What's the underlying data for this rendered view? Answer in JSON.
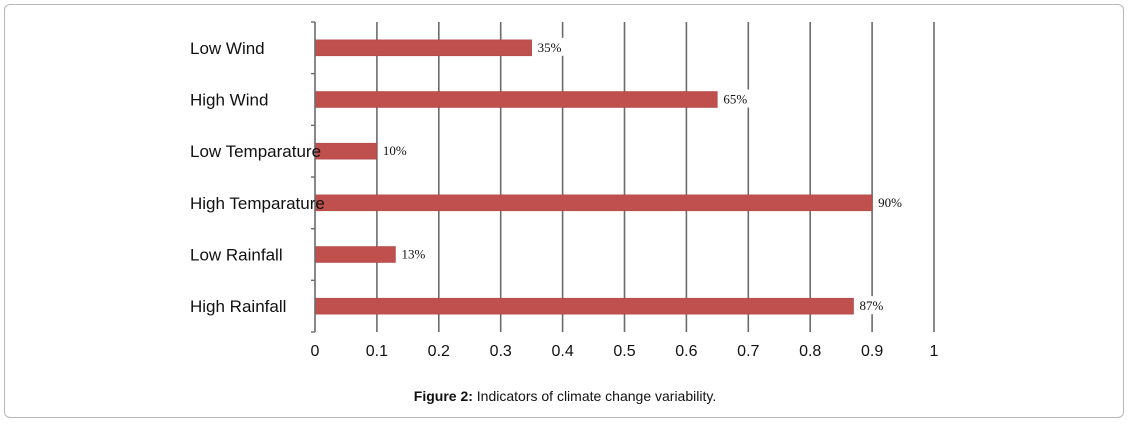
{
  "chart_data": {
    "type": "bar",
    "orientation": "horizontal",
    "categories": [
      "Low Wind",
      "High Wind",
      "Low Temparature",
      "High Temparature",
      "Low Rainfall",
      "High Rainfall"
    ],
    "values": [
      0.35,
      0.65,
      0.1,
      0.9,
      0.13,
      0.87
    ],
    "data_labels": [
      "35%",
      "65%",
      "10%",
      "90%",
      "13%",
      "87%"
    ],
    "xlim": [
      0,
      1
    ],
    "xticks": [
      "0",
      "0.1",
      "0.2",
      "0.3",
      "0.4",
      "0.5",
      "0.6",
      "0.7",
      "0.8",
      "0.9",
      "1"
    ],
    "grid": "vertical",
    "bar_color": "#c0504d",
    "xlabel": "",
    "ylabel": ""
  },
  "caption": {
    "label": "Figure 2:",
    "text": " Indicators of climate change variability."
  }
}
